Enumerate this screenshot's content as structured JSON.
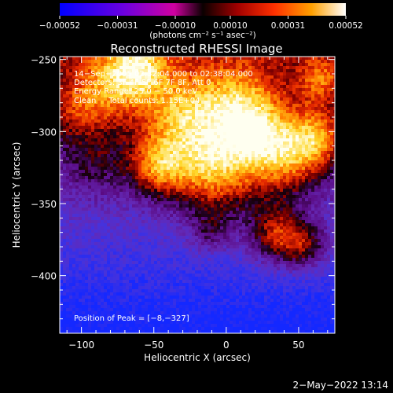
{
  "chart_data": {
    "type": "heatmap",
    "title": "Reconstructed RHESSI Image",
    "xlabel": "Heliocentric X (arcsec)",
    "ylabel": "Heliocentric Y (arcsec)",
    "xlim": [
      -115,
      75
    ],
    "ylim": [
      -440,
      -248
    ],
    "x_ticks": [
      -100,
      -50,
      0,
      50
    ],
    "x_tick_labels": [
      "−100",
      "−50",
      "0",
      "50"
    ],
    "y_ticks": [
      -250,
      -300,
      -350,
      -400
    ],
    "y_tick_labels": [
      "−250",
      "−300",
      "−350",
      "−400"
    ],
    "colorbar": {
      "range": [
        -0.00052,
        0.00052
      ],
      "ticks": [
        -0.00052,
        -0.00031,
        -0.0001,
        0.0001,
        0.00031,
        0.00052
      ],
      "tick_labels": [
        "−0.00052",
        "−0.00031",
        "−0.00010",
        "0.00010",
        "0.00031",
        "0.00052"
      ],
      "unit_label": "(photons cm⁻² s⁻¹ asec⁻²)"
    },
    "annotations": [
      "14−Sep−2005 02:32:04.000 to 02:38:04.000",
      "Detectors: 3F 4F 5F 6F 7F 8F, Att 0",
      "Energy Range: 25.0 − 50.0 keV",
      "Clean     Total counts: 1.15E+04"
    ],
    "peak_label": "Position of Peak = [−8,−327]",
    "peak": [
      -8,
      -327
    ]
  },
  "footer_timestamp": "2−May−2022 13:14",
  "colors": {
    "axis": "#ffffff",
    "background": "#000000"
  }
}
